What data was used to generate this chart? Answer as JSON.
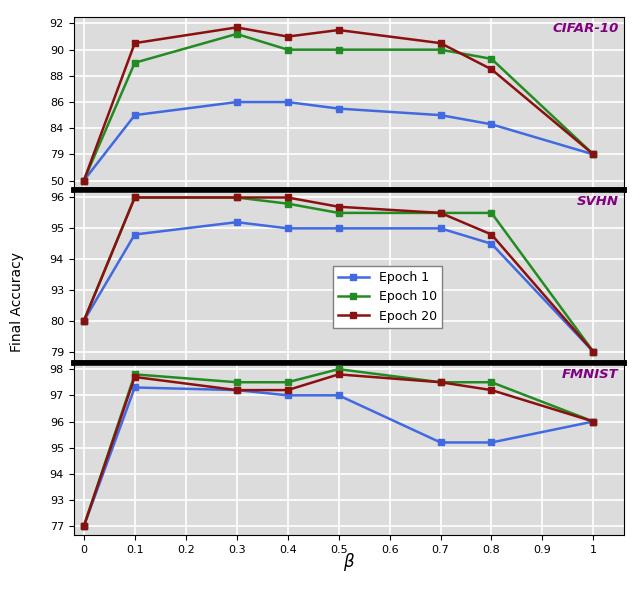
{
  "x": [
    0,
    0.1,
    0.3,
    0.4,
    0.5,
    0.7,
    0.8,
    1.0
  ],
  "cifar10": {
    "epoch1": [
      50,
      85.0,
      86.0,
      86.0,
      85.5,
      85.0,
      84.3,
      79.0
    ],
    "epoch10": [
      50,
      89.0,
      91.2,
      90.0,
      90.0,
      90.0,
      89.3,
      79.0
    ],
    "epoch20": [
      50,
      90.5,
      91.7,
      91.0,
      91.5,
      90.5,
      88.5,
      79.0
    ]
  },
  "svhn": {
    "epoch1": [
      80,
      94.8,
      95.2,
      95.0,
      95.0,
      95.0,
      94.5,
      79.0
    ],
    "epoch10": [
      80,
      96.1,
      96.2,
      95.8,
      95.5,
      95.5,
      95.5,
      79.0
    ],
    "epoch20": [
      80,
      96.3,
      96.3,
      96.2,
      95.7,
      95.5,
      94.8,
      79.0
    ]
  },
  "fmnist": {
    "epoch1": [
      77,
      97.3,
      97.2,
      97.0,
      97.0,
      95.2,
      95.2,
      96.0
    ],
    "epoch10": [
      77,
      97.8,
      97.5,
      97.5,
      98.0,
      97.5,
      97.5,
      96.0
    ],
    "epoch20": [
      77,
      97.7,
      97.2,
      97.2,
      97.8,
      97.5,
      97.2,
      96.0
    ]
  },
  "cifar10_ytick_vals": [
    50,
    79,
    84,
    86,
    88,
    90,
    92
  ],
  "cifar10_ytick_pos": [
    0,
    1,
    2,
    3,
    4,
    5,
    6
  ],
  "svhn_ytick_vals": [
    79,
    80,
    93,
    94,
    95,
    96
  ],
  "svhn_ytick_pos": [
    0,
    1,
    2,
    3,
    4,
    5
  ],
  "fmnist_ytick_vals": [
    77,
    93,
    94,
    95,
    96,
    97,
    98
  ],
  "fmnist_ytick_pos": [
    0,
    1,
    2,
    3,
    4,
    5,
    6
  ],
  "xticks": [
    0,
    0.1,
    0.2,
    0.3,
    0.4,
    0.5,
    0.6,
    0.7,
    0.8,
    0.9,
    1.0
  ],
  "xlabel": "β",
  "ylabel": "Final Accuracy",
  "colors": {
    "epoch1": "#4169E1",
    "epoch10": "#228B22",
    "epoch20": "#8B1010"
  },
  "labels": {
    "epoch1": "Epoch 1",
    "epoch10": "Epoch 10",
    "epoch20": "Epoch 20"
  },
  "dataset_labels": [
    "CIFAR-10",
    "SVHN",
    "FMNIST"
  ],
  "label_color": "#800080",
  "background_color": "#DCDCDC",
  "grid_color": "white"
}
